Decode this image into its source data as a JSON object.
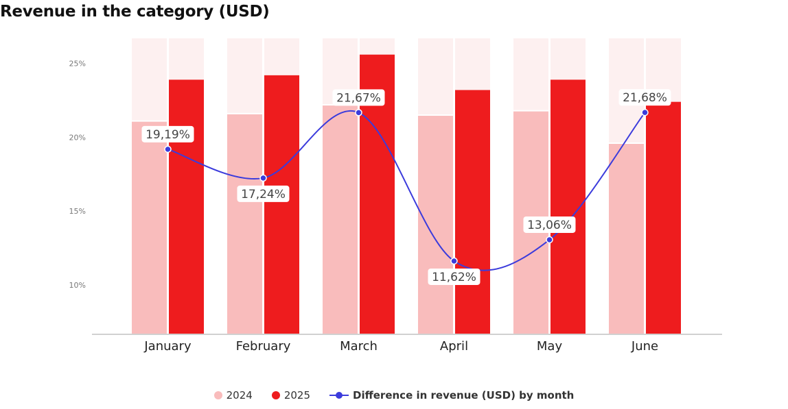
{
  "title": "Revenue in the category (USD)",
  "chart_data": {
    "type": "bar",
    "categories": [
      "January",
      "February",
      "March",
      "April",
      "May",
      "June"
    ],
    "y_ticks": [
      "10%",
      "15%",
      "20%",
      "25%"
    ],
    "ylim": [
      6.7,
      26.7
    ],
    "grid": false,
    "legend_position": "bottom",
    "series": [
      {
        "name": "2024",
        "type": "bar",
        "values": [
          21.1,
          21.6,
          22.2,
          21.5,
          21.8,
          19.6
        ],
        "color": "#f9bcbc"
      },
      {
        "name": "2025",
        "type": "bar",
        "values": [
          23.9,
          24.2,
          25.6,
          23.2,
          23.9,
          22.4
        ],
        "color": "#ee1c1e"
      },
      {
        "name": "Difference in revenue (USD) by month",
        "type": "line",
        "values": [
          19.19,
          17.24,
          21.67,
          11.62,
          13.06,
          21.68
        ],
        "labels": [
          "19,19%",
          "17,24%",
          "21,67%",
          "11,62%",
          "13,06%",
          "21,68%"
        ],
        "color": "#3b3bdc"
      }
    ],
    "background_bar_color": "#fdf0f0"
  }
}
